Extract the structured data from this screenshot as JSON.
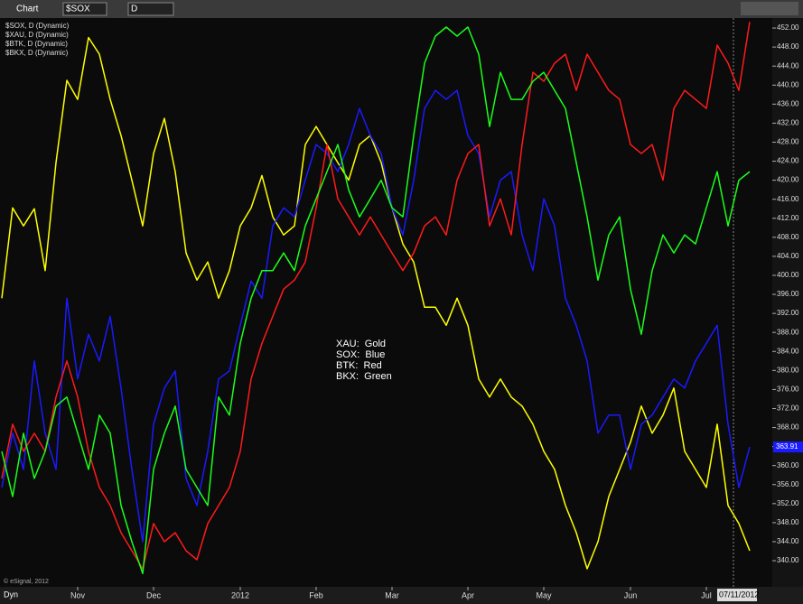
{
  "toolbar": {
    "title": "Chart",
    "symbol": "$SOX",
    "interval": "D"
  },
  "footer": {
    "mode": "Dyn",
    "copyright": "© eSignal, 2012"
  },
  "chart_data": {
    "type": "line",
    "categories": [
      null,
      null,
      null,
      null,
      null,
      null,
      null,
      "Nov",
      null,
      null,
      null,
      null,
      null,
      null,
      "Dec",
      null,
      null,
      null,
      null,
      null,
      null,
      null,
      "2012",
      null,
      null,
      null,
      null,
      null,
      null,
      "Feb",
      null,
      null,
      null,
      null,
      null,
      null,
      "Mar",
      null,
      null,
      null,
      null,
      null,
      null,
      "Apr",
      null,
      null,
      null,
      null,
      null,
      null,
      "May",
      null,
      null,
      null,
      null,
      null,
      null,
      null,
      "Jun",
      null,
      null,
      null,
      null,
      null,
      null,
      "Jul",
      null,
      null,
      null,
      null
    ],
    "cursor_date": "07/11/2012",
    "series": [
      {
        "name": "$SOX, D (Dynamic)",
        "color": "#1a1aff",
        "values": [
          355.4,
          366.8,
          359.2,
          382,
          366.8,
          359.2,
          395.2,
          378.2,
          387.6,
          382,
          391.4,
          376.3,
          359.2,
          344,
          368.7,
          376.3,
          379.9,
          357.3,
          351.6,
          363,
          378.2,
          379.9,
          389.5,
          398.8,
          395.2,
          410.4,
          414.2,
          412.3,
          420,
          427.5,
          425.6,
          421.8,
          427.5,
          435.1,
          429.4,
          425.6,
          414.2,
          408.5,
          420,
          435.1,
          438.9,
          437,
          438.9,
          429.4,
          425.6,
          412.3,
          420,
          421.8,
          408.5,
          401,
          416.1,
          410.4,
          395.2,
          389.5,
          382,
          366.8,
          370.6,
          370.6,
          359.2,
          368.7,
          370.6,
          374.4,
          378.2,
          376.3,
          382,
          385.7,
          389.5,
          368.7,
          355.4,
          363.91
        ]
      },
      {
        "name": "$XAU, D (Dynamic)",
        "color": "#ffff00",
        "values": [
          395.2,
          414.2,
          410.4,
          414,
          401,
          423.7,
          441,
          437,
          450,
          446.5,
          437,
          429.4,
          420,
          410.4,
          425.6,
          433,
          421.8,
          404.7,
          399,
          402.8,
          395.2,
          401,
          410.4,
          414.2,
          421,
          412.3,
          408.5,
          410.4,
          427.5,
          431.3,
          427.5,
          423.7,
          420,
          427.5,
          429.4,
          423.7,
          414.2,
          406.6,
          402.8,
          393.3,
          393.3,
          389.5,
          395.2,
          389.5,
          378.2,
          374.4,
          378.2,
          374.4,
          372.5,
          368.7,
          363,
          359.2,
          351.6,
          345.9,
          338.3,
          344,
          353.5,
          359.2,
          364.9,
          372.5,
          366.8,
          370.6,
          376.3,
          363,
          359.2,
          355.4,
          368.7,
          351.6,
          347.8,
          342.1
        ]
      },
      {
        "name": "$BTK, D (Dynamic)",
        "color": "#ff1a1a",
        "values": [
          357.3,
          368.7,
          363,
          366.8,
          363,
          374.4,
          382,
          374.4,
          363,
          355.4,
          351.6,
          345.9,
          342.1,
          338.3,
          347.8,
          344,
          345.9,
          342.1,
          340.2,
          347.8,
          351.6,
          355.4,
          363,
          378.2,
          385.7,
          391.4,
          397.1,
          399,
          402.8,
          414.2,
          427.5,
          416.1,
          412.3,
          408.5,
          412.3,
          408.5,
          404.7,
          401,
          404.7,
          410.4,
          412.3,
          408.5,
          420,
          425.6,
          427.5,
          410.4,
          416.1,
          408.5,
          427.5,
          442.7,
          440.8,
          444.6,
          446.5,
          438.9,
          446.5,
          442.7,
          438.9,
          437,
          427.5,
          425.6,
          427.5,
          420,
          435.1,
          438.9,
          437,
          435.1,
          448.4,
          444.6,
          438.9,
          453.3
        ]
      },
      {
        "name": "$BKX, D (Dynamic)",
        "color": "#1aff1a",
        "values": [
          363,
          353.5,
          366.8,
          357.3,
          363,
          372.5,
          374.4,
          366.8,
          359.2,
          370.6,
          366.8,
          351.6,
          344,
          337.3,
          359.2,
          366.8,
          372.5,
          359.2,
          355.4,
          351.6,
          374.4,
          370.6,
          385.7,
          395.2,
          401,
          401,
          404.7,
          401,
          410.4,
          416.1,
          421.8,
          427.5,
          418,
          412.3,
          416.1,
          420,
          414.2,
          412.3,
          429.4,
          444.6,
          450.3,
          452.2,
          450.3,
          452.2,
          446.5,
          431.3,
          442.7,
          437,
          437,
          440.8,
          442.7,
          438.9,
          435.1,
          423.7,
          412.3,
          399,
          408.5,
          412.3,
          397.1,
          387.6,
          401,
          408.5,
          404.7,
          408.5,
          406.6,
          414.2,
          421.8,
          410.4,
          420,
          421.8
        ]
      }
    ],
    "annotations": [
      "XAU:  Gold",
      "SOX:  Blue",
      "BTK:  Red",
      "BKX:  Green"
    ],
    "ylim": [
      336.4,
      454.1
    ],
    "yticks": [
      {
        "value": 340,
        "label": "340.00"
      },
      {
        "value": 344,
        "label": "344.00"
      },
      {
        "value": 348,
        "label": "348.00"
      },
      {
        "value": 352,
        "label": "352.00"
      },
      {
        "value": 356,
        "label": "356.00"
      },
      {
        "value": 360,
        "label": "360.00"
      },
      {
        "value": 364,
        "label": "364.00"
      },
      {
        "value": 368,
        "label": "368.00"
      },
      {
        "value": 372,
        "label": "372.00"
      },
      {
        "value": 376,
        "label": "376.00"
      },
      {
        "value": 380,
        "label": "380.00"
      },
      {
        "value": 384,
        "label": "384.00"
      },
      {
        "value": 388,
        "label": "388.00"
      },
      {
        "value": 392,
        "label": "392.00"
      },
      {
        "value": 396,
        "label": "396.00"
      },
      {
        "value": 400,
        "label": "400.00"
      },
      {
        "value": 404,
        "label": "404.00"
      },
      {
        "value": 408,
        "label": "408.00"
      },
      {
        "value": 412,
        "label": "412.00"
      },
      {
        "value": 416,
        "label": "416.00"
      },
      {
        "value": 420,
        "label": "420.00"
      },
      {
        "value": 424,
        "label": "424.00"
      },
      {
        "value": 428,
        "label": "428.00"
      },
      {
        "value": 432,
        "label": "432.00"
      },
      {
        "value": 436,
        "label": "436.00"
      },
      {
        "value": 440,
        "label": "440.00"
      },
      {
        "value": 444,
        "label": "444.00"
      },
      {
        "value": 448,
        "label": "448.00"
      },
      {
        "value": 452,
        "label": "452.00"
      }
    ],
    "grid": false
  }
}
